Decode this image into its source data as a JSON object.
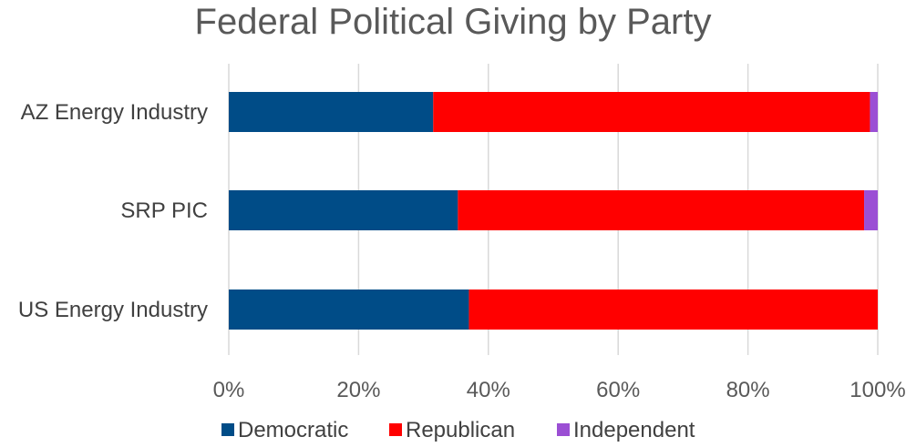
{
  "chart_data": {
    "type": "bar",
    "orientation": "horizontal",
    "stacked": true,
    "title": "Federal Political Giving by Party",
    "xlabel": "",
    "ylabel": "",
    "categories": [
      "AZ Energy Industry",
      "SRP PIC",
      "US Energy Industry"
    ],
    "series": [
      {
        "name": "Democratic",
        "color": "#004c87",
        "values": [
          31.5,
          35.3,
          37.0
        ]
      },
      {
        "name": "Republican",
        "color": "#ff0000",
        "values": [
          67.3,
          62.6,
          63.0
        ]
      },
      {
        "name": "Independent",
        "color": "#9b4fd4",
        "values": [
          1.2,
          2.1,
          0.0
        ]
      }
    ],
    "xlim": [
      0,
      100
    ],
    "xticks": [
      0,
      20,
      40,
      60,
      80,
      100
    ],
    "xtick_labels": [
      "0%",
      "20%",
      "40%",
      "60%",
      "80%",
      "100%"
    ],
    "grid": "vertical",
    "legend_position": "bottom"
  }
}
